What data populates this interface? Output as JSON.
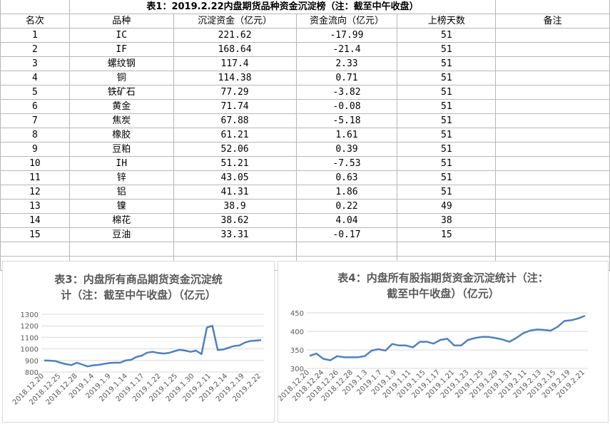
{
  "table": {
    "title": "表1：2019.2.22内盘期货品种资金沉淀榜（注：截至中午收盘）",
    "headers": [
      "名次",
      "品种",
      "沉淀资金（亿元）",
      "资金流向（亿元）",
      "上榜天数",
      "备注"
    ],
    "rows": [
      [
        "1",
        "IC",
        "221.62",
        "-17.99",
        "51",
        ""
      ],
      [
        "2",
        "IF",
        "168.64",
        "-21.4",
        "51",
        ""
      ],
      [
        "3",
        "螺纹钢",
        "117.4",
        "2.33",
        "51",
        ""
      ],
      [
        "4",
        "铜",
        "114.38",
        "0.71",
        "51",
        ""
      ],
      [
        "5",
        "铁矿石",
        "77.29",
        "-3.82",
        "51",
        ""
      ],
      [
        "6",
        "黄金",
        "71.74",
        "-0.08",
        "51",
        ""
      ],
      [
        "7",
        "焦炭",
        "67.88",
        "-5.18",
        "51",
        ""
      ],
      [
        "8",
        "橡胶",
        "61.21",
        "1.61",
        "51",
        ""
      ],
      [
        "9",
        "豆粕",
        "52.06",
        "0.39",
        "51",
        ""
      ],
      [
        "10",
        "IH",
        "51.21",
        "-7.53",
        "51",
        ""
      ],
      [
        "11",
        "锌",
        "43.05",
        "0.63",
        "51",
        ""
      ],
      [
        "12",
        "铝",
        "41.31",
        "1.86",
        "51",
        ""
      ],
      [
        "13",
        "镍",
        "38.9",
        "0.22",
        "49",
        ""
      ],
      [
        "14",
        "棉花",
        "38.62",
        "4.04",
        "38",
        ""
      ],
      [
        "15",
        "豆油",
        "33.31",
        "-0.17",
        "15",
        ""
      ]
    ]
  },
  "chart_data": [
    {
      "type": "line",
      "title": "表3：内盘所有商品期货资金沉淀统计（注：截至中午收盘）（亿元）",
      "title_lines": [
        "表3：内盘所有商品期货资金沉淀统",
        "计（注：截至中午收盘）（亿元）"
      ],
      "ylim": [
        800,
        1300
      ],
      "yticks": [
        800,
        900,
        1000,
        1100,
        1200,
        1300
      ],
      "xtick_labels": [
        "2018.12.20",
        "2018.12.25",
        "2018.12.28",
        "2019.1.4",
        "2019.1.9",
        "2019.1.14",
        "2019.1.17",
        "2019.1.22",
        "2019.1.25",
        "2019.1.30",
        "2019.2.11",
        "2019.2.14",
        "2019.2.19",
        "2019.2.22"
      ],
      "series": [
        {
          "color": "#4f81bd",
          "values": [
            900,
            898,
            895,
            880,
            868,
            860,
            880,
            865,
            848,
            858,
            862,
            870,
            878,
            880,
            880,
            900,
            905,
            930,
            942,
            968,
            975,
            965,
            960,
            965,
            980,
            992,
            985,
            975,
            985,
            955,
            1185,
            1200,
            990,
            995,
            1010,
            1025,
            1030,
            1055,
            1068,
            1072,
            1075
          ]
        }
      ]
    },
    {
      "type": "line",
      "title": "表4：内盘所有股指期货资金沉淀统计（注：截至中午收盘）（亿元）",
      "title_lines": [
        "表4：内盘所有股指期货资金沉淀统计（注：",
        "截至中午收盘）（亿元）"
      ],
      "ylim": [
        300,
        450
      ],
      "yticks": [
        300,
        350,
        400,
        450
      ],
      "xtick_labels": [
        "2018.12.20",
        "2018.12.24",
        "2018.12.26",
        "2018.12.28",
        "2019.1.3",
        "2019.1.7",
        "2019.1.9",
        "2019.1.11",
        "2019.1.15",
        "2019.1.17",
        "2019.1.21",
        "2019.1.23",
        "2019.1.25",
        "2019.1.29",
        "2019.1.31",
        "2019.2.11",
        "2019.2.13",
        "2019.2.15",
        "2019.2.19",
        "2019.2.21"
      ],
      "series": [
        {
          "color": "#4f81bd",
          "values": [
            334,
            340,
            326,
            322,
            333,
            330,
            330,
            330,
            333,
            348,
            352,
            348,
            366,
            362,
            362,
            357,
            372,
            372,
            367,
            377,
            380,
            362,
            362,
            377,
            382,
            385,
            385,
            382,
            378,
            372,
            382,
            395,
            402,
            405,
            404,
            402,
            412,
            428,
            430,
            435,
            442
          ]
        }
      ]
    }
  ]
}
